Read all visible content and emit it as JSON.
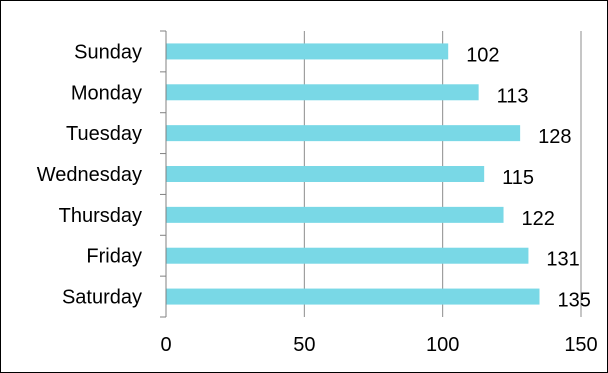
{
  "chart_data": {
    "type": "bar",
    "orientation": "horizontal",
    "title": "",
    "xlabel": "",
    "ylabel": "",
    "categories": [
      "Sunday",
      "Monday",
      "Tuesday",
      "Wednesday",
      "Thursday",
      "Friday",
      "Saturday"
    ],
    "values": [
      102,
      113,
      128,
      115,
      122,
      131,
      135
    ],
    "data_labels": [
      "102",
      "113",
      "128",
      "115",
      "122",
      "131",
      "135"
    ],
    "xlim": [
      0,
      150
    ],
    "x_ticks": [
      0,
      50,
      100,
      150
    ],
    "x_tick_labels": [
      "0",
      "50",
      "100",
      "150"
    ],
    "grid": "vertical major gridlines",
    "legend": "none",
    "bar_color": "#79D8E6",
    "gridline_color": "#8C8C8C",
    "axis_color": "#808080"
  }
}
